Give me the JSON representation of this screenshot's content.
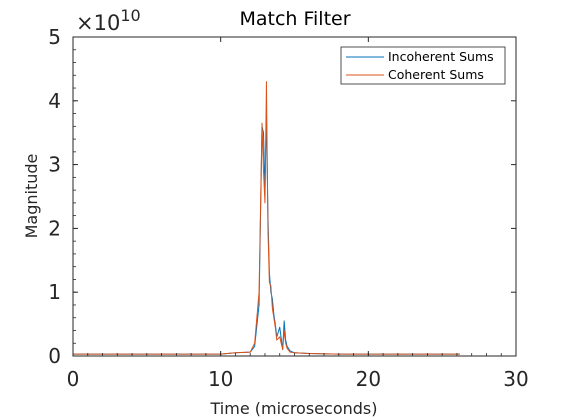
{
  "chart_data": {
    "type": "line",
    "title": "Match Filter",
    "xlabel": "Time (microseconds)",
    "ylabel": "Magnitude",
    "xlim": [
      0,
      30
    ],
    "ylim": [
      0,
      5
    ],
    "x_ticks": [
      0,
      10,
      20,
      30
    ],
    "y_ticks": [
      0,
      1,
      2,
      3,
      4,
      5
    ],
    "x_tick_labels": [
      "0",
      "10",
      "20",
      "30"
    ],
    "y_tick_labels": [
      "0",
      "1",
      "2",
      "3",
      "4",
      "5"
    ],
    "y_exponent_base": "×10",
    "y_exponent_power": "10",
    "grid": false,
    "box": true,
    "legend_position": "top-right",
    "series": [
      {
        "name": "Incoherent Sums",
        "color": "#0072BD",
        "x": [
          0,
          2,
          4,
          6,
          8,
          10,
          11,
          12,
          12.3,
          12.6,
          12.8,
          12.9,
          13.0,
          13.1,
          13.2,
          13.3,
          13.4,
          13.5,
          13.6,
          13.7,
          13.8,
          14.0,
          14.2,
          14.3,
          14.4,
          14.5,
          14.7,
          15,
          16,
          18,
          20,
          22,
          24,
          26.2
        ],
        "y": [
          0.03,
          0.03,
          0.03,
          0.03,
          0.03,
          0.03,
          0.05,
          0.06,
          0.15,
          0.8,
          3.6,
          3.5,
          2.6,
          3.8,
          2.2,
          1.3,
          1.0,
          0.9,
          0.65,
          0.5,
          0.3,
          0.45,
          0.1,
          0.55,
          0.25,
          0.15,
          0.08,
          0.05,
          0.04,
          0.03,
          0.03,
          0.03,
          0.03,
          0.03
        ]
      },
      {
        "name": "Coherent Sums",
        "color": "#D95319",
        "x": [
          0,
          2,
          4,
          6,
          8,
          10,
          11,
          12,
          12.3,
          12.6,
          12.8,
          12.9,
          13.0,
          13.1,
          13.2,
          13.3,
          13.4,
          13.5,
          13.6,
          13.7,
          13.8,
          14.0,
          14.2,
          14.3,
          14.4,
          14.5,
          14.7,
          15,
          16,
          18,
          20,
          22,
          24,
          26.2
        ],
        "y": [
          0.03,
          0.03,
          0.03,
          0.03,
          0.03,
          0.03,
          0.05,
          0.06,
          0.2,
          1.0,
          3.65,
          2.9,
          2.4,
          4.3,
          2.0,
          1.15,
          1.1,
          0.75,
          0.6,
          0.45,
          0.25,
          0.3,
          0.1,
          0.4,
          0.2,
          0.12,
          0.06,
          0.05,
          0.04,
          0.03,
          0.03,
          0.03,
          0.03,
          0.03
        ]
      }
    ]
  }
}
